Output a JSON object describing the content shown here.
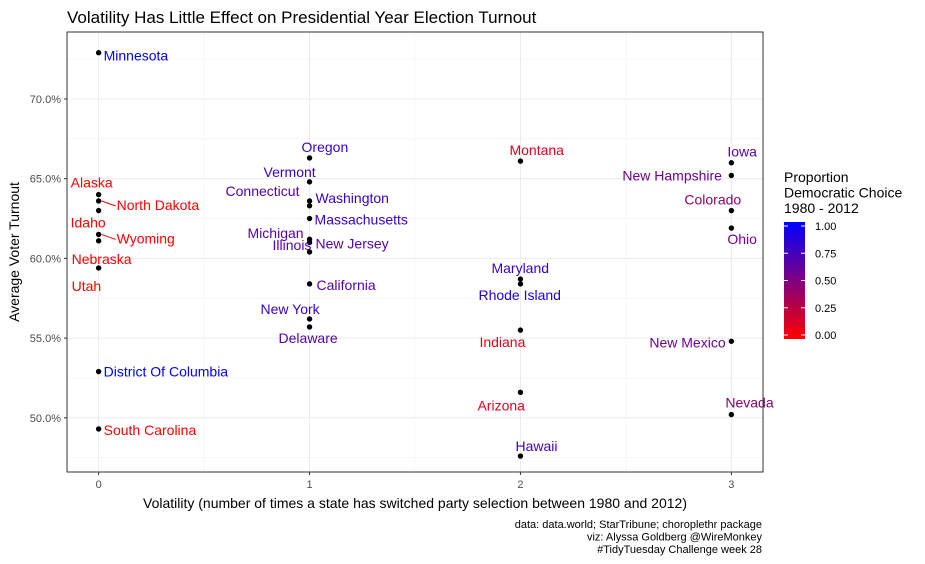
{
  "chart_data": {
    "type": "scatter",
    "title": "Volatility Has Little Effect on Presidential Year Election Turnout",
    "xlabel": "Volatility (number of times a state has switched party selection between 1980 and 2012)",
    "ylabel": "Average Voter Turnout",
    "xlim": [
      -0.15,
      3.15
    ],
    "ylim": [
      46.6,
      74.2
    ],
    "x_ticks": [
      0,
      1,
      2,
      3
    ],
    "x_tick_labels": [
      "0",
      "1",
      "2",
      "3"
    ],
    "y_ticks": [
      50,
      55,
      60,
      65,
      70
    ],
    "y_tick_labels": [
      "50.0%",
      "55.0%",
      "60.0%",
      "65.0%",
      "70.0%"
    ],
    "grid": true,
    "legend": {
      "title": "Proportion\nDemocratic Choice\n1980 - 2012",
      "labels": [
        "1.00",
        "0.75",
        "0.50",
        "0.25",
        "0.00"
      ],
      "values": [
        1.0,
        0.75,
        0.5,
        0.25,
        0.0
      ],
      "placement": "right",
      "color_low": "#ff0000",
      "color_high": "#0000ff"
    },
    "caption": [
      "data: data.world; StarTribune; choroplethr package",
      "viz: Alyssa Goldberg @WireMonkey",
      "#TidyTuesday Challenge week 28"
    ],
    "points": [
      {
        "state": "Minnesota",
        "x": 0,
        "y": 72.9,
        "prop": 1.0
      },
      {
        "state": "Alaska",
        "x": 0,
        "y": 64.0,
        "prop": 0.0
      },
      {
        "state": "North Dakota",
        "x": 0,
        "y": 63.6,
        "prop": 0.0
      },
      {
        "state": "Idaho",
        "x": 0,
        "y": 63.0,
        "prop": 0.0
      },
      {
        "state": "Wyoming",
        "x": 0,
        "y": 61.5,
        "prop": 0.0
      },
      {
        "state": "Nebraska",
        "x": 0,
        "y": 61.1,
        "prop": 0.0
      },
      {
        "state": "Utah",
        "x": 0,
        "y": 59.4,
        "prop": 0.0
      },
      {
        "state": "District Of Columbia",
        "x": 0,
        "y": 52.9,
        "prop": 1.0
      },
      {
        "state": "South Carolina",
        "x": 0,
        "y": 49.3,
        "prop": 0.0
      },
      {
        "state": "Oregon",
        "x": 1,
        "y": 66.3,
        "prop": 0.78
      },
      {
        "state": "Vermont",
        "x": 1,
        "y": 64.8,
        "prop": 0.78
      },
      {
        "state": "Connecticut",
        "x": 1,
        "y": 63.6,
        "prop": 0.67
      },
      {
        "state": "Washington",
        "x": 1,
        "y": 63.3,
        "prop": 0.78
      },
      {
        "state": "Massachusetts",
        "x": 1,
        "y": 62.5,
        "prop": 0.78
      },
      {
        "state": "Michigan",
        "x": 1,
        "y": 61.2,
        "prop": 0.67
      },
      {
        "state": "New Jersey",
        "x": 1,
        "y": 61.0,
        "prop": 0.67
      },
      {
        "state": "Illinois",
        "x": 1,
        "y": 60.4,
        "prop": 0.67
      },
      {
        "state": "California",
        "x": 1,
        "y": 58.4,
        "prop": 0.67
      },
      {
        "state": "New York",
        "x": 1,
        "y": 56.2,
        "prop": 0.78
      },
      {
        "state": "Delaware",
        "x": 1,
        "y": 55.7,
        "prop": 0.67
      },
      {
        "state": "Montana",
        "x": 2,
        "y": 66.1,
        "prop": 0.11
      },
      {
        "state": "Maryland",
        "x": 2,
        "y": 58.7,
        "prop": 0.78
      },
      {
        "state": "Rhode Island",
        "x": 2,
        "y": 58.4,
        "prop": 0.89
      },
      {
        "state": "Indiana",
        "x": 2,
        "y": 55.5,
        "prop": 0.11
      },
      {
        "state": "Arizona",
        "x": 2,
        "y": 51.6,
        "prop": 0.11
      },
      {
        "state": "Hawaii",
        "x": 2,
        "y": 47.6,
        "prop": 0.78
      },
      {
        "state": "Iowa",
        "x": 3,
        "y": 66.0,
        "prop": 0.67
      },
      {
        "state": "New Hampshire",
        "x": 3,
        "y": 65.2,
        "prop": 0.56
      },
      {
        "state": "Colorado",
        "x": 3,
        "y": 63.0,
        "prop": 0.44
      },
      {
        "state": "Ohio",
        "x": 3,
        "y": 61.9,
        "prop": 0.56
      },
      {
        "state": "New Mexico",
        "x": 3,
        "y": 54.8,
        "prop": 0.56
      },
      {
        "state": "Nevada",
        "x": 3,
        "y": 50.2,
        "prop": 0.44
      }
    ]
  }
}
